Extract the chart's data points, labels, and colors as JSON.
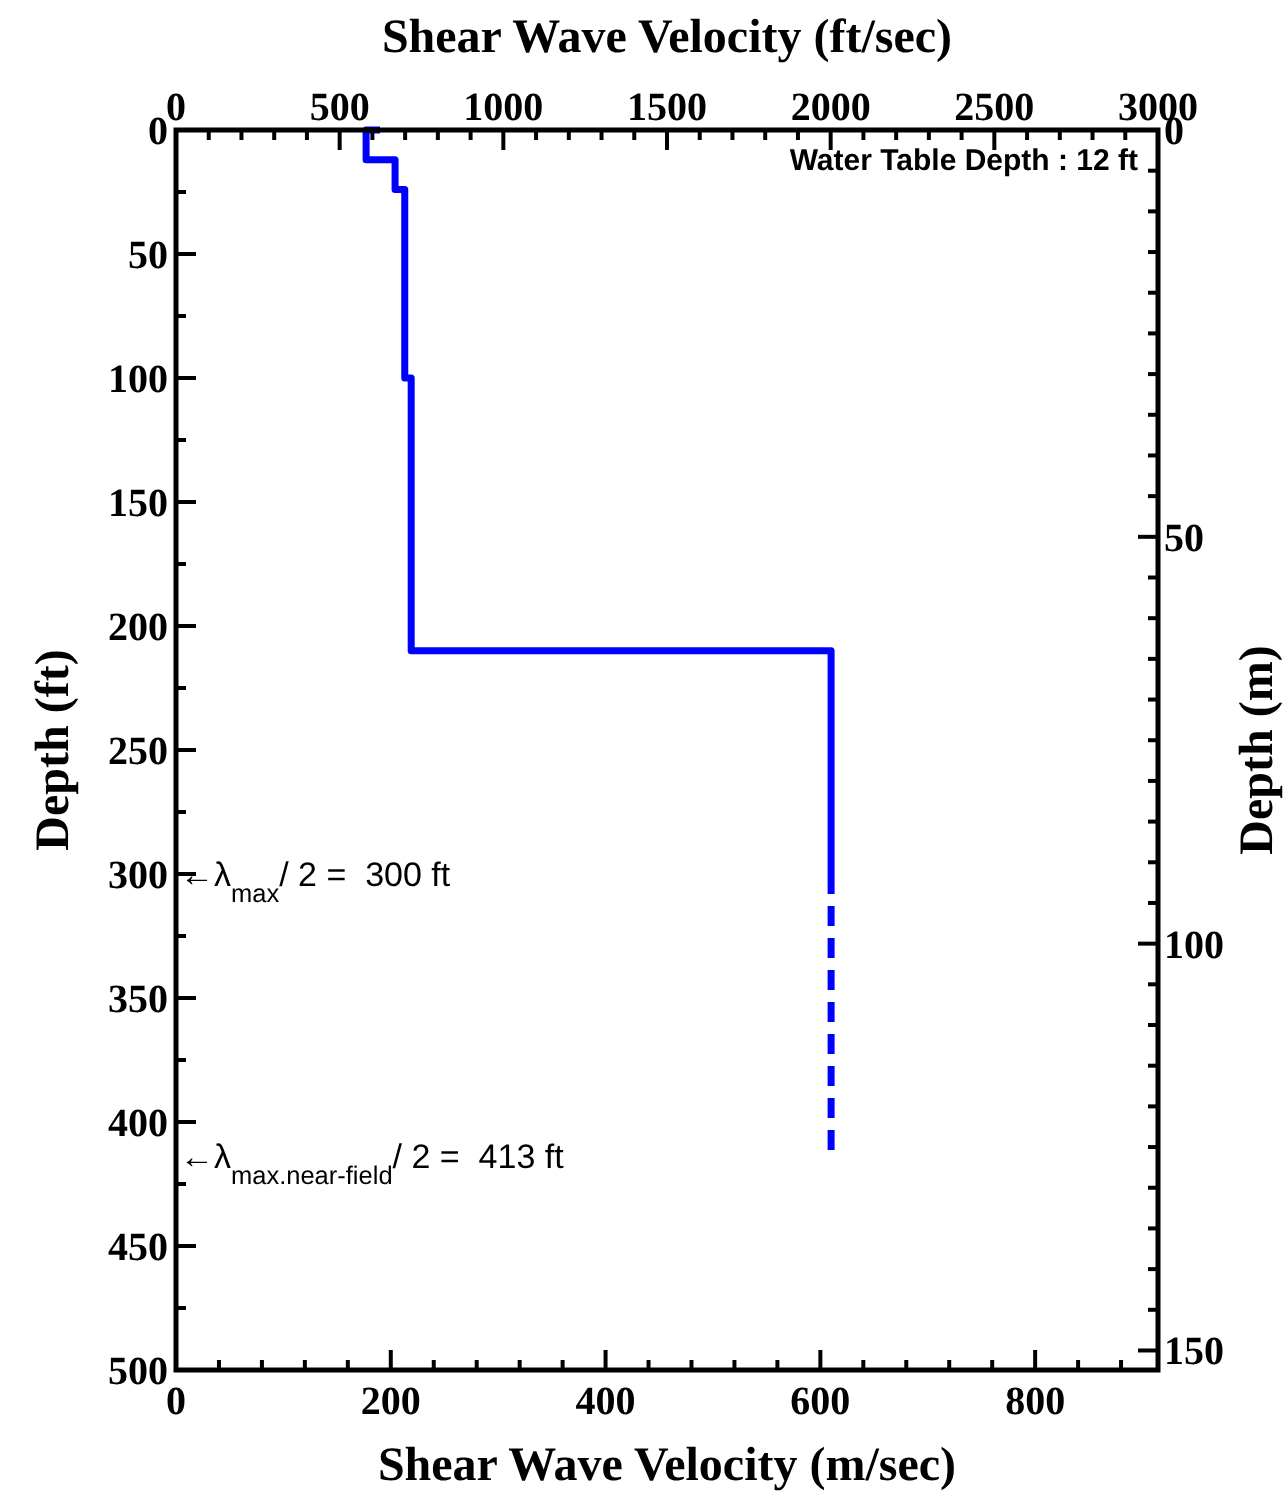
{
  "chart_data": {
    "type": "line",
    "xlabel": "Shear Wave Velocity (m/sec)",
    "x2label": "Shear Wave Velocity (ft/sec)",
    "ylabel": "Depth (ft)",
    "y2label": "Depth (m)",
    "xlim": [
      0,
      914.4
    ],
    "xticks": [
      0,
      {
        "value": 40,
        "label": null
      },
      {
        "value": 80,
        "label": null
      },
      {
        "value": 120,
        "label": null
      },
      {
        "value": 160,
        "label": null
      },
      200,
      {
        "value": 240,
        "label": null
      },
      {
        "value": 280,
        "label": null
      },
      {
        "value": 320,
        "label": null
      },
      {
        "value": 360,
        "label": null
      },
      400,
      {
        "value": 440,
        "label": null
      },
      {
        "value": 480,
        "label": null
      },
      {
        "value": 520,
        "label": null
      },
      {
        "value": 560,
        "label": null
      },
      600,
      {
        "value": 640,
        "label": null
      },
      {
        "value": 680,
        "label": null
      },
      {
        "value": 720,
        "label": null
      },
      {
        "value": 760,
        "label": null
      },
      800,
      {
        "value": 840,
        "label": null
      },
      {
        "value": 880,
        "label": null
      }
    ],
    "x2lim": [
      0,
      3000
    ],
    "x2ticks": [
      0,
      {
        "value": 100,
        "label": null
      },
      {
        "value": 200,
        "label": null
      },
      {
        "value": 300,
        "label": null
      },
      {
        "value": 400,
        "label": null
      },
      500,
      {
        "value": 600,
        "label": null
      },
      {
        "value": 700,
        "label": null
      },
      {
        "value": 800,
        "label": null
      },
      {
        "value": 900,
        "label": null
      },
      1000,
      {
        "value": 1100,
        "label": null
      },
      {
        "value": 1200,
        "label": null
      },
      {
        "value": 1300,
        "label": null
      },
      {
        "value": 1400,
        "label": null
      },
      1500,
      {
        "value": 1600,
        "label": null
      },
      {
        "value": 1700,
        "label": null
      },
      {
        "value": 1800,
        "label": null
      },
      {
        "value": 1900,
        "label": null
      },
      2000,
      {
        "value": 2100,
        "label": null
      },
      {
        "value": 2200,
        "label": null
      },
      {
        "value": 2300,
        "label": null
      },
      {
        "value": 2400,
        "label": null
      },
      2500,
      {
        "value": 2600,
        "label": null
      },
      {
        "value": 2700,
        "label": null
      },
      {
        "value": 2800,
        "label": null
      },
      {
        "value": 2900,
        "label": null
      },
      3000
    ],
    "ylim": [
      500,
      0
    ],
    "yticks": [
      0,
      {
        "value": 25,
        "label": null
      },
      50,
      {
        "value": 75,
        "label": null
      },
      100,
      {
        "value": 125,
        "label": null
      },
      150,
      {
        "value": 175,
        "label": null
      },
      200,
      {
        "value": 225,
        "label": null
      },
      250,
      {
        "value": 275,
        "label": null
      },
      300,
      {
        "value": 325,
        "label": null
      },
      350,
      {
        "value": 375,
        "label": null
      },
      400,
      {
        "value": 425,
        "label": null
      },
      450,
      {
        "value": 475,
        "label": null
      },
      500
    ],
    "y2lim": [
      152.4,
      0
    ],
    "y2ticks": [
      0,
      {
        "value": 5,
        "label": null
      },
      {
        "value": 10,
        "label": null
      },
      {
        "value": 15,
        "label": null
      },
      {
        "value": 20,
        "label": null
      },
      {
        "value": 25,
        "label": null
      },
      {
        "value": 30,
        "label": null
      },
      {
        "value": 35,
        "label": null
      },
      {
        "value": 40,
        "label": null
      },
      {
        "value": 45,
        "label": null
      },
      50,
      {
        "value": 55,
        "label": null
      },
      {
        "value": 60,
        "label": null
      },
      {
        "value": 65,
        "label": null
      },
      {
        "value": 70,
        "label": null
      },
      {
        "value": 75,
        "label": null
      },
      {
        "value": 80,
        "label": null
      },
      {
        "value": 85,
        "label": null
      },
      {
        "value": 90,
        "label": null
      },
      {
        "value": 95,
        "label": null
      },
      100,
      {
        "value": 105,
        "label": null
      },
      {
        "value": 110,
        "label": null
      },
      {
        "value": 115,
        "label": null
      },
      {
        "value": 120,
        "label": null
      },
      {
        "value": 125,
        "label": null
      },
      {
        "value": 130,
        "label": null
      },
      {
        "value": 135,
        "label": null
      },
      {
        "value": 140,
        "label": null
      },
      {
        "value": 145,
        "label": null
      },
      150
    ],
    "series": [
      {
        "color": "#0000ff",
        "line_style": "solid",
        "x": [
          190,
          177,
          177,
          204,
          204,
          213,
          213,
          219,
          219,
          610,
          610
        ],
        "values": [
          0,
          0,
          12,
          12,
          24,
          24,
          100,
          100,
          210,
          210,
          300
        ]
      },
      {
        "color": "#0000ff",
        "line_style": "dashed",
        "x": [
          610,
          610
        ],
        "values": [
          300,
          413
        ]
      }
    ],
    "annotations": [
      "Water Table Depth : 12 ft",
      "←λ$_{max}$/ 2 =  300 ft",
      "←λ$_{max.near-field}$/ 2 =  413 ft"
    ],
    "grid": false
  }
}
